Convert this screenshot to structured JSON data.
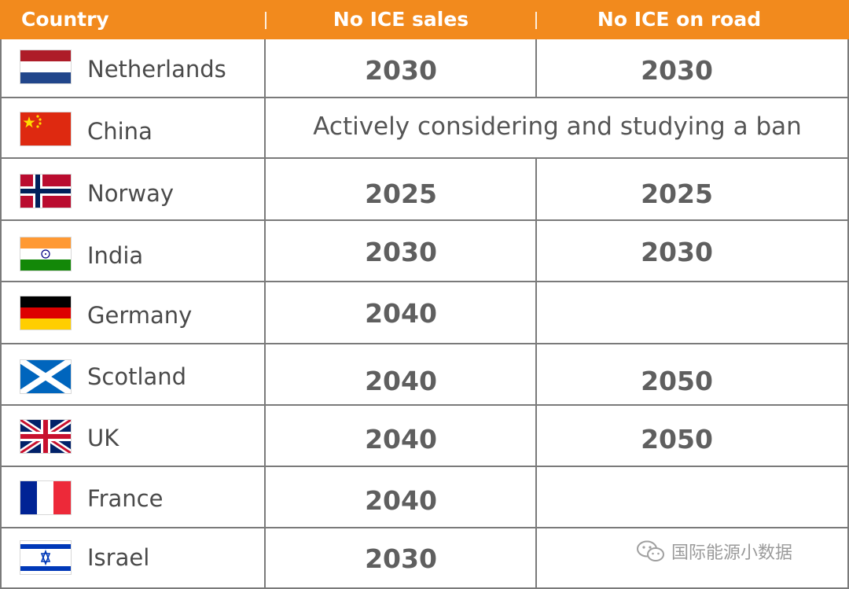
{
  "header": {
    "country": "Country",
    "no_ice_sales": "No ICE sales",
    "no_ice_on_road": "No ICE on road"
  },
  "colors": {
    "header_bg": "#f28a1d",
    "header_text": "#ffffff",
    "grid": "#7a7a7a",
    "text": "#4a4a4a"
  },
  "rows": [
    {
      "country": "Netherlands",
      "flag": "netherlands-flag-icon",
      "sales": "2030",
      "road": "2030"
    },
    {
      "country": "China",
      "flag": "china-flag-icon",
      "note": "Actively considering and studying a ban"
    },
    {
      "country": "Norway",
      "flag": "norway-flag-icon",
      "sales": "2025",
      "road": "2025"
    },
    {
      "country": "India",
      "flag": "india-flag-icon",
      "sales": "2030",
      "road": "2030"
    },
    {
      "country": "Germany",
      "flag": "germany-flag-icon",
      "sales": "2040",
      "road": ""
    },
    {
      "country": "Scotland",
      "flag": "scotland-flag-icon",
      "sales": "2040",
      "road": "2050"
    },
    {
      "country": "UK",
      "flag": "uk-flag-icon",
      "sales": "2040",
      "road": "2050"
    },
    {
      "country": "France",
      "flag": "france-flag-icon",
      "sales": "2040",
      "road": ""
    },
    {
      "country": "Israel",
      "flag": "israel-flag-icon",
      "sales": "2030",
      "road": ""
    }
  ],
  "watermark": {
    "icon": "wechat-icon",
    "text": "国际能源小数据"
  }
}
